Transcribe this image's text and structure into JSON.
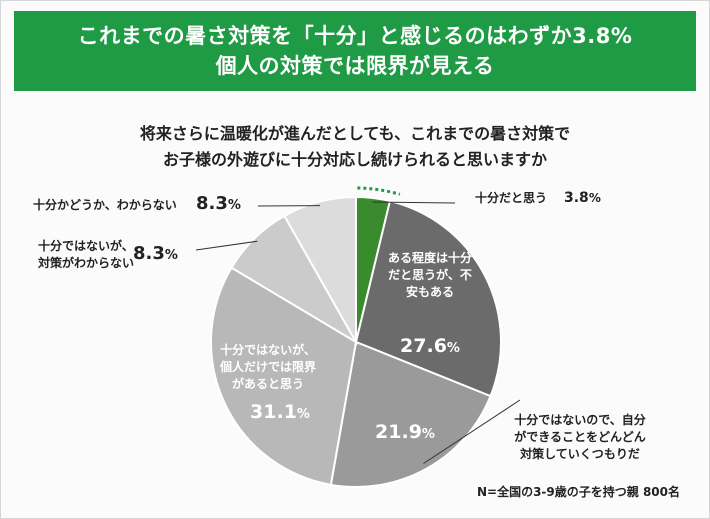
{
  "banner": {
    "line1": "これまでの暑さ対策を「十分」と感じるのはわずか3.8%",
    "line2": "個人の対策では限界が見える"
  },
  "question": {
    "line1": "将来さらに温暖化が進んだとしても、これまでの暑さ対策で",
    "line2": "お子様の外遊びに十分対応し続けられると思いますか"
  },
  "note": "N=全国の3-9歳の子を持つ親 800名",
  "colors": {
    "banner": "#1f9a45",
    "slice_sufficient": "#3a8a2e",
    "slice_anxious": "#6b6b6b",
    "slice_self": "#9a9a9a",
    "slice_limit": "#b8b8b8",
    "slice_unknown_measure": "#cbcbcb",
    "slice_unknown": "#dcdcdc",
    "highlight_dots": "#1f9a45"
  },
  "chart_data": {
    "type": "pie",
    "title": "将来さらに温暖化が進んだとしても、これまでの暑さ対策でお子様の外遊びに十分対応し続けられると思いますか",
    "unit": "%",
    "slices": [
      {
        "label": "十分だと思う",
        "value": 3.8,
        "value_text": "3.8",
        "color": "#3a8a2e"
      },
      {
        "label": "ある程度は十分だと思うが、不安もある",
        "value": 27.6,
        "value_text": "27.6",
        "color": "#6b6b6b"
      },
      {
        "label": "十分ではないので、自分ができることをどんどん対策していくつもりだ",
        "value": 21.9,
        "value_text": "21.9",
        "color": "#9a9a9a"
      },
      {
        "label": "十分ではないが、個人だけでは限界があると思う",
        "value": 31.1,
        "value_text": "31.1",
        "color": "#b8b8b8"
      },
      {
        "label": "十分ではないが、対策がわからない",
        "value": 8.3,
        "value_text": "8.3",
        "color": "#cbcbcb"
      },
      {
        "label": "十分かどうか、わからない",
        "value": 8.3,
        "value_text": "8.3",
        "color": "#dcdcdc"
      }
    ]
  }
}
